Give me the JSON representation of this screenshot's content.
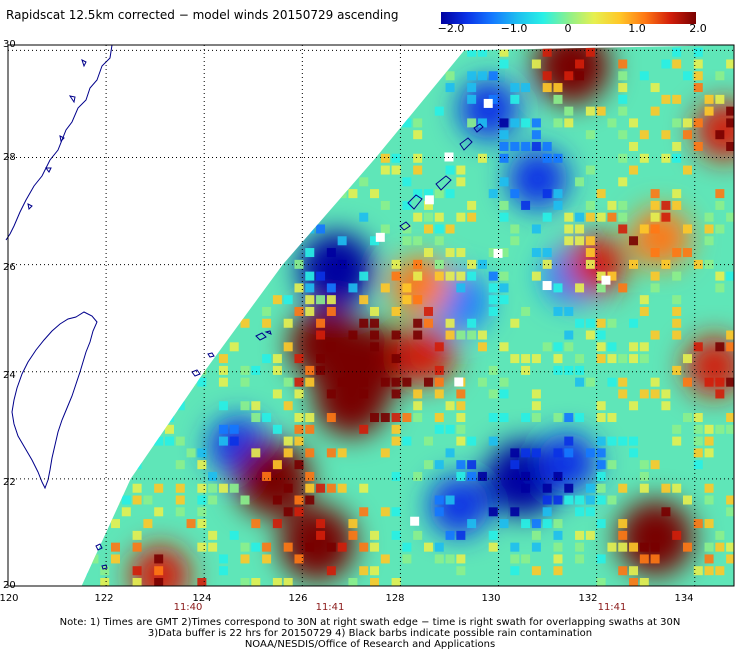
{
  "title": "Rapidscat 12.5km corrected − model winds 20150729 ascending",
  "colorbar": {
    "ticks": [
      "−2.0",
      "−1.0",
      "0",
      "1.0",
      "2.0"
    ],
    "tick_values": [
      -2.0,
      -1.0,
      0,
      1.0,
      2.0
    ],
    "colors": [
      "#0000a0",
      "#0a32e6",
      "#1478ff",
      "#1ebef0",
      "#28f0e6",
      "#8cf08c",
      "#e6f050",
      "#ffc828",
      "#ff7814",
      "#d21e0a",
      "#780000"
    ]
  },
  "axes": {
    "lat_labels": [
      "30",
      "28",
      "26",
      "24",
      "22",
      "20"
    ],
    "lat_values": [
      30,
      28,
      26,
      24,
      22,
      20
    ],
    "lon_labels": [
      "120",
      "122",
      "124",
      "126",
      "128",
      "130",
      "132",
      "134"
    ],
    "lon_values": [
      120,
      122,
      124,
      126,
      128,
      130,
      132,
      134
    ],
    "lon_range": [
      120,
      134.8
    ],
    "lat_range": [
      20,
      30.1
    ],
    "grid": "dotted"
  },
  "time_labels": [
    {
      "text": "11:40",
      "lon": 124
    },
    {
      "text": "11:41",
      "lon": 126.2
    },
    {
      "text": "11:41",
      "lon": 132.3
    }
  ],
  "notes": {
    "line1": "Note: 1) Times are GMT 2)Times correspond to 30N at right swath edge − time is right swath for overlapping swaths at 30N",
    "line2": "3)Data buffer is 22 hrs for 20150729 4) Black barbs indicate possible rain contamination",
    "line3": "NOAA/NESDIS/Office of Research and Applications"
  },
  "map_data": {
    "field": "wind speed difference (corrected − model)",
    "swath_left_edge": [
      [
        121.5,
        20
      ],
      [
        122.5,
        22
      ],
      [
        124,
        24
      ],
      [
        125.6,
        26
      ],
      [
        127.5,
        28
      ],
      [
        129.3,
        30
      ]
    ],
    "features": [
      {
        "name": "low",
        "lon": 130.5,
        "lat": 22,
        "value": -2.0
      },
      {
        "name": "low",
        "lon": 129.2,
        "lat": 21.5,
        "value": -1.6
      },
      {
        "name": "low",
        "lon": 131.4,
        "lat": 22.3,
        "value": -1.5
      },
      {
        "name": "low",
        "lon": 126.7,
        "lat": 25.9,
        "value": -1.8
      },
      {
        "name": "low",
        "lon": 124.7,
        "lat": 22.6,
        "value": -1.5
      },
      {
        "name": "low",
        "lon": 130.8,
        "lat": 27.6,
        "value": -1.7
      },
      {
        "name": "low",
        "lon": 129.2,
        "lat": 25.3,
        "value": -1.4
      },
      {
        "name": "low",
        "lon": 131.5,
        "lat": 25.8,
        "value": -1.2
      },
      {
        "name": "low",
        "lon": 129.8,
        "lat": 28.9,
        "value": -1.5
      },
      {
        "name": "high",
        "lon": 126.3,
        "lat": 20.8,
        "value": 1.8
      },
      {
        "name": "high",
        "lon": 133.2,
        "lat": 20.9,
        "value": 1.8
      },
      {
        "name": "high",
        "lon": 134.4,
        "lat": 24.1,
        "value": 1.6
      },
      {
        "name": "high",
        "lon": 131.5,
        "lat": 29.7,
        "value": 1.8
      },
      {
        "name": "high",
        "lon": 134.6,
        "lat": 28.5,
        "value": 1.4
      },
      {
        "name": "high",
        "lon": 123.1,
        "lat": 20.2,
        "value": 1.7
      },
      {
        "name": "high",
        "lon": 127.4,
        "lat": 24.2,
        "value": 1.8
      },
      {
        "name": "high",
        "lon": 128.5,
        "lat": 24.3,
        "value": 1.4
      },
      {
        "name": "high",
        "lon": 128.4,
        "lat": 25.6,
        "value": 1.3
      },
      {
        "name": "high",
        "lon": 133.3,
        "lat": 26.5,
        "value": 1.2
      },
      {
        "name": "high",
        "lon": 126.5,
        "lat": 24.5,
        "value": 2.0
      },
      {
        "name": "high",
        "lon": 127.0,
        "lat": 23.5,
        "value": 2.0
      },
      {
        "name": "high",
        "lon": 125.4,
        "lat": 22.0,
        "value": 1.8
      },
      {
        "name": "high",
        "lon": 132.0,
        "lat": 26.0,
        "value": 1.5
      }
    ],
    "missing_spots": [
      [
        129.8,
        29.0
      ],
      [
        129.0,
        28.0
      ],
      [
        128.6,
        27.2
      ],
      [
        127.6,
        26.5
      ],
      [
        130.0,
        26.2
      ],
      [
        131.0,
        25.6
      ],
      [
        132.2,
        25.7
      ],
      [
        129.2,
        23.8
      ],
      [
        128.3,
        21.2
      ]
    ],
    "land": [
      "Taiwan",
      "Yaeyama Islands",
      "Okinawa",
      "Amami Islands",
      "Tokara Islands"
    ]
  }
}
